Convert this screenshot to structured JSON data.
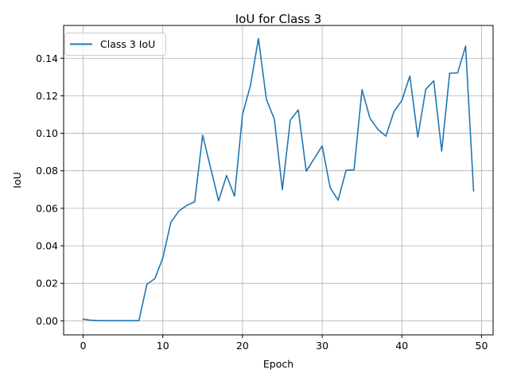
{
  "chart_data": {
    "type": "line",
    "title": "IoU for Class 3",
    "xlabel": "Epoch",
    "ylabel": "IoU",
    "xlim": [
      -2.45,
      51.45
    ],
    "ylim": [
      -0.0075,
      0.1575
    ],
    "xticks": [
      0,
      10,
      20,
      30,
      40,
      50
    ],
    "xtick_labels": [
      "0",
      "10",
      "20",
      "30",
      "40",
      "50"
    ],
    "yticks": [
      0.0,
      0.02,
      0.04,
      0.06,
      0.08,
      0.1,
      0.12,
      0.14
    ],
    "ytick_labels": [
      "0.00",
      "0.02",
      "0.04",
      "0.06",
      "0.08",
      "0.10",
      "0.12",
      "0.14"
    ],
    "grid": true,
    "legend_position": "upper-left",
    "series": [
      {
        "name": "Class 3 IoU",
        "color": "#1f77b4",
        "x": [
          0,
          1,
          2,
          3,
          4,
          5,
          6,
          7,
          8,
          9,
          10,
          11,
          12,
          13,
          14,
          15,
          16,
          17,
          18,
          19,
          20,
          21,
          22,
          23,
          24,
          25,
          26,
          27,
          28,
          29,
          30,
          31,
          32,
          33,
          34,
          35,
          36,
          37,
          38,
          39,
          40,
          41,
          42,
          43,
          44,
          45,
          46,
          47,
          48,
          49
        ],
        "y": [
          0.0009,
          0.0003,
          0.0001,
          0.0001,
          0.0001,
          0.0001,
          0.0001,
          0.0001,
          0.0195,
          0.0225,
          0.0335,
          0.0525,
          0.0585,
          0.0615,
          0.0635,
          0.099,
          0.0815,
          0.064,
          0.0775,
          0.0665,
          0.11,
          0.1255,
          0.1505,
          0.118,
          0.1075,
          0.07,
          0.107,
          0.1125,
          0.0798,
          0.0865,
          0.0933,
          0.071,
          0.0643,
          0.0803,
          0.0805,
          0.1233,
          0.108,
          0.102,
          0.0985,
          0.1115,
          0.1175,
          0.1305,
          0.098,
          0.1235,
          0.128,
          0.0905,
          0.132,
          0.1322,
          0.1465,
          0.0693
        ]
      }
    ]
  }
}
